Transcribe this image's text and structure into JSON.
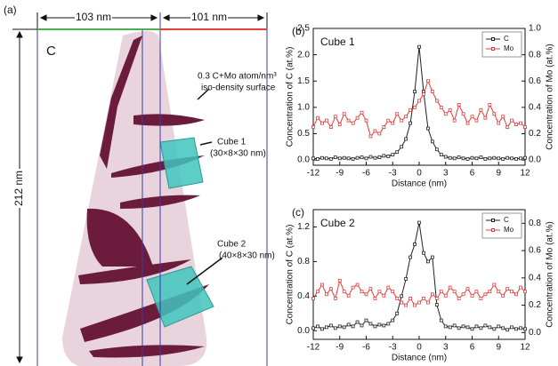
{
  "panel_a": {
    "label": "(a)",
    "width_left": "103 nm",
    "width_right": "101 nm",
    "height": "212 nm",
    "element": "C",
    "surface_line1": "0.3 C+Mo atom/nm³",
    "surface_line2": "iso-density surface",
    "cube1": "Cube 1",
    "cube1_size": "(30×8×30 nm)",
    "cube2": "Cube 2",
    "cube2_size": "(40×8×30 nm)"
  },
  "chart_data": [
    {
      "type": "line",
      "panel_label": "(b)",
      "title": "Cube 1",
      "xlabel": "Distance (nm)",
      "ylabel": "Concentration of C (at.%)",
      "y2label": "Concentration of Mo (at.%)",
      "legend": "upper right",
      "x": [
        -12,
        -11.5,
        -11,
        -10.5,
        -10,
        -9.5,
        -9,
        -8.5,
        -8,
        -7.5,
        -7,
        -6.5,
        -6,
        -5.5,
        -5,
        -4.5,
        -4,
        -3.5,
        -3,
        -2.5,
        -2,
        -1.5,
        -1,
        -0.5,
        0,
        0.5,
        1,
        1.5,
        2,
        2.5,
        3,
        3.5,
        4,
        4.5,
        5,
        5.5,
        6,
        6.5,
        7,
        7.5,
        8,
        8.5,
        9,
        9.5,
        10,
        10.5,
        11,
        11.5,
        12
      ],
      "xlim": [
        -12,
        12
      ],
      "xticks": [
        -12,
        -9,
        -6,
        -3,
        0,
        3,
        6,
        9,
        12
      ],
      "ylim": [
        -0.1,
        2.5
      ],
      "yticks": [
        {
          "value": 0,
          "label": "0.0"
        },
        0.5,
        {
          "value": 1,
          "label": "1.0"
        },
        1.5,
        {
          "value": 2,
          "label": "2.0"
        },
        2.5
      ],
      "y2lim": [
        -0.04,
        1.0
      ],
      "y2ticks": [
        {
          "value": 0,
          "label": "0.0"
        },
        0.2,
        0.4,
        0.6,
        0.8,
        {
          "value": 1,
          "label": "1.0"
        }
      ],
      "series": [
        {
          "name": "C",
          "color": "#222222",
          "values": [
            0.03,
            0.02,
            0.04,
            0.03,
            0.02,
            0.05,
            0.03,
            0.04,
            0.03,
            0.02,
            0.04,
            0.05,
            0.03,
            0.06,
            0.04,
            0.05,
            0.08,
            0.07,
            0.1,
            0.15,
            0.25,
            0.4,
            0.7,
            1.3,
            2.15,
            1.3,
            0.6,
            0.35,
            0.2,
            0.1,
            0.06,
            0.04,
            0.03,
            0.05,
            0.03,
            0.02,
            0.04,
            0.03,
            0.05,
            0.02,
            0.03,
            0.04,
            0.03,
            0.02,
            0.04,
            0.03,
            0.02,
            0.03,
            0.04
          ]
        },
        {
          "name": "Mo",
          "color": "#e03c3c",
          "axis": "y2",
          "values": [
            0.25,
            0.32,
            0.28,
            0.3,
            0.25,
            0.33,
            0.27,
            0.35,
            0.3,
            0.28,
            0.32,
            0.36,
            0.3,
            0.18,
            0.22,
            0.2,
            0.25,
            0.3,
            0.28,
            0.35,
            0.3,
            0.33,
            0.38,
            0.4,
            0.45,
            0.5,
            0.6,
            0.52,
            0.45,
            0.4,
            0.35,
            0.38,
            0.3,
            0.42,
            0.35,
            0.28,
            0.33,
            0.3,
            0.38,
            0.32,
            0.42,
            0.35,
            0.28,
            0.33,
            0.25,
            0.3,
            0.27,
            0.28,
            0.25
          ]
        }
      ]
    },
    {
      "type": "line",
      "panel_label": "(c)",
      "title": "Cube 2",
      "xlabel": "Distance (nm)",
      "ylabel": "Concentration of C (at.%)",
      "y2label": "Concentration of Mo (at.%)",
      "legend": "upper right",
      "x": [
        -12,
        -11.5,
        -11,
        -10.5,
        -10,
        -9.5,
        -9,
        -8.5,
        -8,
        -7.5,
        -7,
        -6.5,
        -6,
        -5.5,
        -5,
        -4.5,
        -4,
        -3.5,
        -3,
        -2.5,
        -2,
        -1.5,
        -1,
        -0.5,
        0,
        0.5,
        1,
        1.5,
        2,
        2.5,
        3,
        3.5,
        4,
        4.5,
        5,
        5.5,
        6,
        6.5,
        7,
        7.5,
        8,
        8.5,
        9,
        9.5,
        10,
        10.5,
        11,
        11.5,
        12
      ],
      "xlim": [
        -12,
        12
      ],
      "xticks": [
        -12,
        -9,
        -6,
        -3,
        0,
        3,
        6,
        9,
        12
      ],
      "ylim": [
        -0.1,
        1.4
      ],
      "yticks": [
        {
          "value": 0,
          "label": "0.0"
        },
        0.4,
        0.8,
        1.2
      ],
      "y2lim": [
        -0.05,
        0.9
      ],
      "y2ticks": [
        {
          "value": 0,
          "label": "0.0"
        },
        0.2,
        0.4,
        0.6,
        0.8
      ],
      "series": [
        {
          "name": "C",
          "color": "#222222",
          "values": [
            0.03,
            0.05,
            0.02,
            0.04,
            0.06,
            0.03,
            0.05,
            0.04,
            0.07,
            0.05,
            0.1,
            0.06,
            0.12,
            0.08,
            0.05,
            0.07,
            0.06,
            0.08,
            0.12,
            0.2,
            0.4,
            0.6,
            0.85,
            1.0,
            1.25,
            0.9,
            0.8,
            0.85,
            0.3,
            0.12,
            0.05,
            0.04,
            0.06,
            0.03,
            0.05,
            0.04,
            0.02,
            0.05,
            0.03,
            0.06,
            0.04,
            0.02,
            0.05,
            0.03,
            0.01,
            0.04,
            0.02,
            0.03,
            0.02
          ]
        },
        {
          "name": "Mo",
          "color": "#e03c3c",
          "axis": "y2",
          "values": [
            0.25,
            0.3,
            0.35,
            0.28,
            0.32,
            0.25,
            0.38,
            0.3,
            0.27,
            0.33,
            0.35,
            0.3,
            0.28,
            0.32,
            0.25,
            0.3,
            0.27,
            0.33,
            0.3,
            0.25,
            0.22,
            0.2,
            0.25,
            0.2,
            0.22,
            0.25,
            0.22,
            0.28,
            0.25,
            0.3,
            0.27,
            0.33,
            0.3,
            0.25,
            0.28,
            0.32,
            0.27,
            0.3,
            0.25,
            0.28,
            0.3,
            0.35,
            0.3,
            0.27,
            0.32,
            0.3,
            0.28,
            0.33,
            0.3
          ]
        }
      ]
    }
  ]
}
